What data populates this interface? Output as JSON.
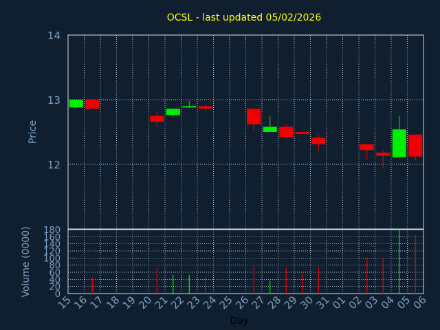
{
  "chart_data": [
    {
      "type": "candlestick",
      "title": "OCSL - last updated 05/02/2026",
      "xlabel": "",
      "ylabel": "Price",
      "ylim": [
        11,
        14
      ],
      "yticks": [
        "14",
        "13",
        "12"
      ],
      "grid": true,
      "candles": [
        {
          "x": "15",
          "open": 12.88,
          "high": 13.0,
          "low": 12.88,
          "close": 13.0
        },
        {
          "x": "16",
          "open": 13.0,
          "high": 13.0,
          "low": 12.86,
          "close": 12.86
        },
        {
          "x": "20",
          "open": 12.75,
          "high": 12.83,
          "low": 12.58,
          "close": 12.66
        },
        {
          "x": "21",
          "open": 12.76,
          "high": 12.87,
          "low": 12.73,
          "close": 12.86
        },
        {
          "x": "22",
          "open": 12.88,
          "high": 12.98,
          "low": 12.87,
          "close": 12.9
        },
        {
          "x": "23",
          "open": 12.9,
          "high": 12.92,
          "low": 12.82,
          "close": 12.86
        },
        {
          "x": "26",
          "open": 12.86,
          "high": 12.87,
          "low": 12.52,
          "close": 12.62
        },
        {
          "x": "27",
          "open": 12.5,
          "high": 12.74,
          "low": 12.5,
          "close": 12.58
        },
        {
          "x": "28",
          "open": 12.58,
          "high": 12.62,
          "low": 12.4,
          "close": 12.42
        },
        {
          "x": "29",
          "open": 12.5,
          "high": 12.5,
          "low": 12.45,
          "close": 12.47
        },
        {
          "x": "30",
          "open": 12.41,
          "high": 12.46,
          "low": 12.2,
          "close": 12.31
        },
        {
          "x": "02",
          "open": 12.31,
          "high": 12.31,
          "low": 12.07,
          "close": 12.22
        },
        {
          "x": "03",
          "open": 12.18,
          "high": 12.22,
          "low": 11.93,
          "close": 12.13
        },
        {
          "x": "04",
          "open": 12.11,
          "high": 12.75,
          "low": 12.11,
          "close": 12.54
        },
        {
          "x": "05",
          "open": 12.46,
          "high": 12.46,
          "low": 12.06,
          "close": 12.12
        }
      ],
      "colors": {
        "up": "#00ee00",
        "down": "#ee0000",
        "grid": "#ffffff",
        "axis": "#d0d8e0",
        "text": "#7f9fbf",
        "title": "#ffff00",
        "background": "#0f1f30"
      }
    },
    {
      "type": "bar",
      "xlabel": "Day",
      "ylabel": "Volume (0000)",
      "ylim": [
        0,
        180
      ],
      "yticks": [
        "180",
        "160",
        "140",
        "120",
        "100",
        "80",
        "60",
        "40",
        "20",
        "0"
      ],
      "categories": [
        "15",
        "16",
        "17",
        "18",
        "19",
        "20",
        "21",
        "22",
        "23",
        "24",
        "25",
        "26",
        "27",
        "28",
        "29",
        "30",
        "31",
        "01",
        "02",
        "03",
        "04",
        "05",
        "06"
      ],
      "values": [
        0,
        45,
        0,
        0,
        0,
        70,
        52,
        52,
        47,
        0,
        0,
        82,
        35,
        72,
        57,
        75,
        0,
        0,
        100,
        100,
        180,
        165,
        0
      ],
      "directions": [
        "",
        "down",
        "",
        "",
        "",
        "down",
        "up",
        "up",
        "down",
        "",
        "",
        "down",
        "up",
        "down",
        "down",
        "down",
        "",
        "",
        "down",
        "down",
        "up",
        "down",
        ""
      ]
    }
  ]
}
